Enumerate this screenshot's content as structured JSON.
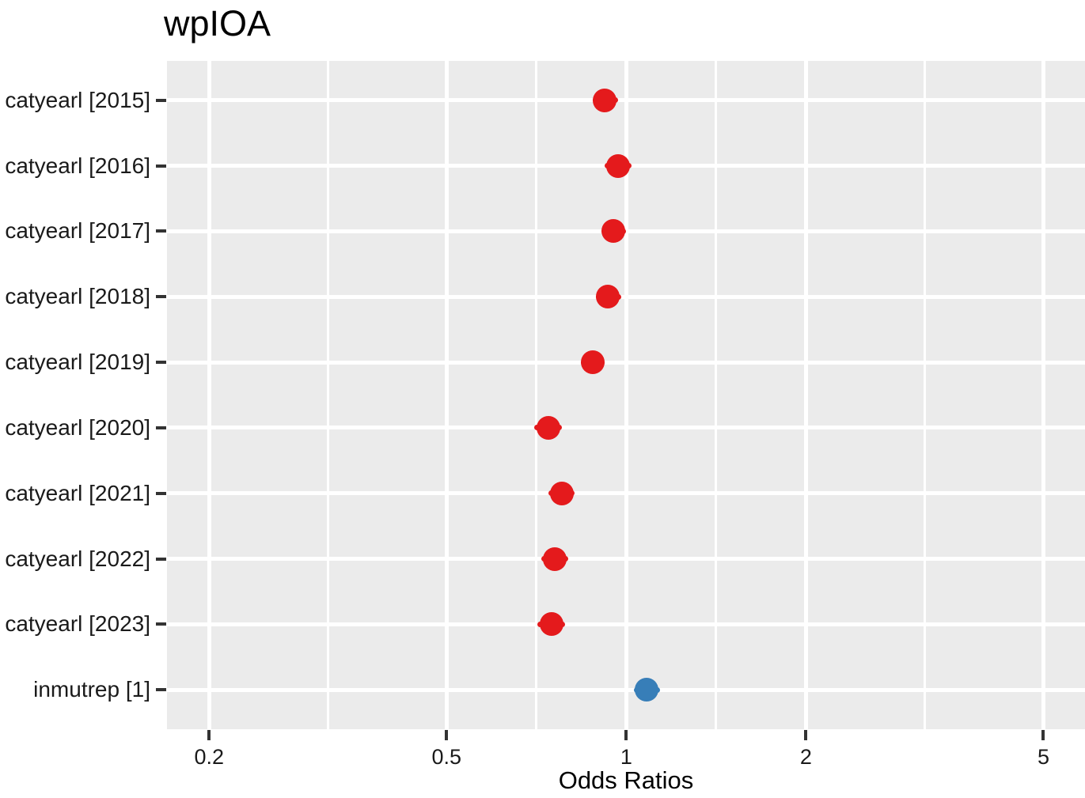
{
  "chart_data": {
    "type": "scatter",
    "variant": "forest-plot-dot-whisker",
    "title": "wpIOA",
    "xlabel": "Odds Ratios",
    "x_scale": "log10",
    "x_breaks": [
      0.2,
      0.5,
      1,
      2,
      5
    ],
    "x_break_labels": [
      "0.2",
      "0.5",
      "1",
      "2",
      "5"
    ],
    "x_minor_breaks": [
      0.316,
      0.707,
      1.414,
      3.162
    ],
    "x_range": [
      0.17,
      5.87
    ],
    "grid": "on",
    "legend": "none",
    "terms": [
      {
        "label": "catyearl [2015]",
        "or": 0.92,
        "ci_low": 0.88,
        "ci_high": 0.97,
        "color": "#e41a1c"
      },
      {
        "label": "catyearl [2016]",
        "or": 0.97,
        "ci_low": 0.92,
        "ci_high": 1.02,
        "color": "#e41a1c"
      },
      {
        "label": "catyearl [2017]",
        "or": 0.95,
        "ci_low": 0.91,
        "ci_high": 1.0,
        "color": "#e41a1c"
      },
      {
        "label": "catyearl [2018]",
        "or": 0.93,
        "ci_low": 0.89,
        "ci_high": 0.98,
        "color": "#e41a1c"
      },
      {
        "label": "catyearl [2019]",
        "or": 0.88,
        "ci_low": 0.84,
        "ci_high": 0.92,
        "color": "#e41a1c"
      },
      {
        "label": "catyearl [2020]",
        "or": 0.74,
        "ci_low": 0.7,
        "ci_high": 0.78,
        "color": "#e41a1c"
      },
      {
        "label": "catyearl [2021]",
        "or": 0.78,
        "ci_low": 0.74,
        "ci_high": 0.82,
        "color": "#e41a1c"
      },
      {
        "label": "catyearl [2022]",
        "or": 0.76,
        "ci_low": 0.72,
        "ci_high": 0.8,
        "color": "#e41a1c"
      },
      {
        "label": "catyearl [2023]",
        "or": 0.75,
        "ci_low": 0.71,
        "ci_high": 0.79,
        "color": "#e41a1c"
      },
      {
        "label": "inmutrep [1]",
        "or": 1.08,
        "ci_low": 1.03,
        "ci_high": 1.14,
        "color": "#377eb8"
      }
    ],
    "colors": {
      "negative_effect": "#e41a1c",
      "positive_effect": "#377eb8",
      "panel_background": "#ebebeb",
      "gridline": "#ffffff",
      "tick_mark": "#333333",
      "axis_text": "#1a1a1a",
      "title_text": "#000000"
    }
  }
}
